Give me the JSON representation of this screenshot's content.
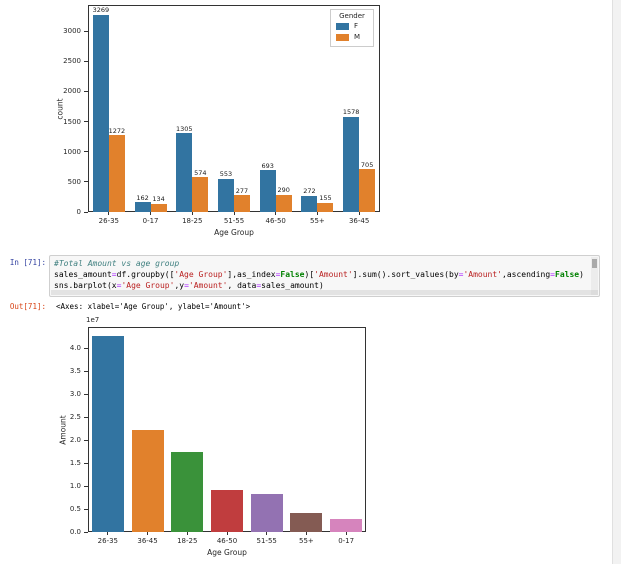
{
  "cell": {
    "in_prompt": "In [71]:",
    "out_prompt": "Out[71]:",
    "output_text": "<Axes: xlabel='Age Group', ylabel='Amount'>",
    "code_lines": [
      [
        {
          "t": "#Total Amount vs age group",
          "c": "com"
        }
      ],
      [
        {
          "t": "sales_amount",
          "c": "pln"
        },
        {
          "t": "=",
          "c": "op"
        },
        {
          "t": "df.groupby([",
          "c": "pln"
        },
        {
          "t": "'Age Group'",
          "c": "str"
        },
        {
          "t": "],as_index",
          "c": "pln"
        },
        {
          "t": "=",
          "c": "op"
        },
        {
          "t": "False",
          "c": "kw"
        },
        {
          "t": ")[",
          "c": "pln"
        },
        {
          "t": "'Amount'",
          "c": "str"
        },
        {
          "t": "].sum().sort_values(by",
          "c": "pln"
        },
        {
          "t": "=",
          "c": "op"
        },
        {
          "t": "'Amount'",
          "c": "str"
        },
        {
          "t": ",ascending",
          "c": "pln"
        },
        {
          "t": "=",
          "c": "op"
        },
        {
          "t": "False",
          "c": "kw"
        },
        {
          "t": ")",
          "c": "pln"
        }
      ],
      [
        {
          "t": "sns.barplot(x",
          "c": "pln"
        },
        {
          "t": "=",
          "c": "op"
        },
        {
          "t": "'Age Group'",
          "c": "str"
        },
        {
          "t": ",y",
          "c": "pln"
        },
        {
          "t": "=",
          "c": "op"
        },
        {
          "t": "'Amount'",
          "c": "str"
        },
        {
          "t": ", data",
          "c": "pln"
        },
        {
          "t": "=",
          "c": "op"
        },
        {
          "t": "sales_amount)",
          "c": "pln"
        }
      ]
    ]
  },
  "chart_data": [
    {
      "type": "bar",
      "title": "",
      "categories": [
        "26-35",
        "0-17",
        "18-25",
        "51-55",
        "46-50",
        "55+",
        "36-45"
      ],
      "series": [
        {
          "name": "F",
          "color": "#3274a1",
          "values": [
            3269,
            162,
            1305,
            553,
            693,
            272,
            1578
          ]
        },
        {
          "name": "M",
          "color": "#e1812c",
          "values": [
            1272,
            134,
            574,
            277,
            290,
            155,
            705
          ]
        }
      ],
      "bar_labels": true,
      "xlabel": "Age Group",
      "ylabel": "count",
      "ylim": [
        0,
        3432
      ],
      "yticks": [
        0,
        500,
        1000,
        1500,
        2000,
        2500,
        3000
      ],
      "grid": false,
      "legend": {
        "title": "Gender",
        "position": "upper-right",
        "entries": [
          "F",
          "M"
        ]
      }
    },
    {
      "type": "bar",
      "title": "",
      "categories": [
        "26-35",
        "36-45",
        "18-25",
        "46-50",
        "51-55",
        "55+",
        "0-17"
      ],
      "values": [
        42600000,
        22200000,
        17400000,
        9100000,
        8300000,
        4100000,
        2800000
      ],
      "bar_colors": [
        "#3274a1",
        "#e1812c",
        "#3a923a",
        "#c03d3e",
        "#9372b2",
        "#845b53",
        "#d684bd"
      ],
      "xlabel": "Age Group",
      "ylabel": "Amount",
      "ylim": [
        0,
        44600000
      ],
      "yticks": [
        0,
        5000000,
        10000000,
        15000000,
        20000000,
        25000000,
        30000000,
        35000000,
        40000000
      ],
      "ytick_labels": [
        "0.0",
        "0.5",
        "1.0",
        "1.5",
        "2.0",
        "2.5",
        "3.0",
        "3.5",
        "4.0"
      ],
      "scale_label": "1e7",
      "grid": false,
      "legend": null
    }
  ],
  "colors": {
    "female": "#3274a1",
    "male": "#e1812c",
    "in_prompt": "#303F9F",
    "out_prompt": "#D84315",
    "cell_bg": "#f7f7f7"
  }
}
